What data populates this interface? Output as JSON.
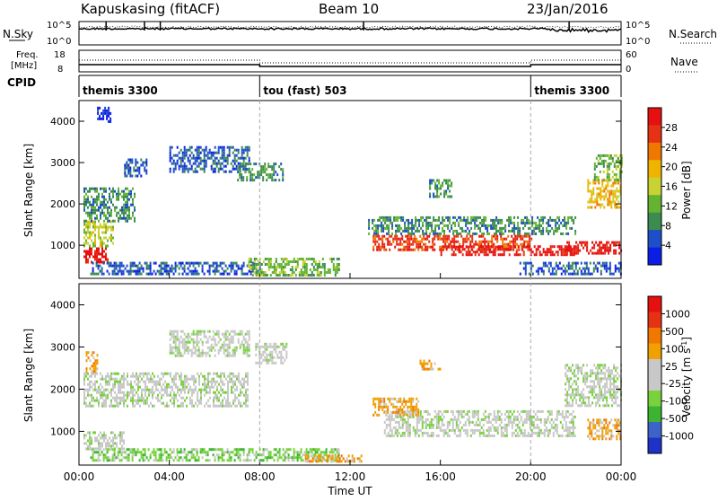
{
  "header": {
    "station": "Kapuskasing (fitACF)",
    "beam": "Beam 10",
    "date": "23/Jan/2016"
  },
  "side_labels": {
    "nsky": "N.Sky",
    "nsearch": "N.Search",
    "freq_line1": "Freq.",
    "freq_line2": "[MHz]",
    "nave": "Nave",
    "cpid": "CPID",
    "noise_top": "10^5",
    "noise_bottom": "10^0",
    "freq_top": "18",
    "freq_bottom": "8",
    "nave_top": "60",
    "nave_bottom": "0"
  },
  "cpid_segments": [
    {
      "label": "themis 3300",
      "start_hour": 0,
      "end_hour": 8
    },
    {
      "label": "tou (fast) 503",
      "start_hour": 8,
      "end_hour": 20
    },
    {
      "label": "themis 3300",
      "start_hour": 20,
      "end_hour": 24
    }
  ],
  "colors": {
    "background": "#ffffff",
    "axis": "#000000",
    "mode_line": "#aaaaaa",
    "scatter_gray": "#c8c8c8"
  },
  "chart_data": [
    {
      "type": "heatmap",
      "name": "Power",
      "xlabel": "",
      "ylabel": "Slant Range [km]",
      "xlim": [
        0,
        24
      ],
      "ylim": [
        200,
        4500
      ],
      "yticks": [
        1000,
        2000,
        3000,
        4000
      ],
      "colorbar": {
        "label": "Power [dB]",
        "ticks": [
          "28",
          "24",
          "20",
          "16",
          "12",
          "8",
          "4"
        ],
        "colors": [
          "#0a1ee6",
          "#1e4fc8",
          "#3c8c50",
          "#64b432",
          "#c8d232",
          "#f0b400",
          "#f07800",
          "#e63214",
          "#e61010"
        ]
      },
      "regions": [
        {
          "x": [
            0.2,
            1.3
          ],
          "y": [
            600,
            950
          ],
          "level": 8
        },
        {
          "x": [
            0.2,
            1.5
          ],
          "y": [
            950,
            1600
          ],
          "level": 4
        },
        {
          "x": [
            0.2,
            2.5
          ],
          "y": [
            1600,
            2400
          ],
          "level": 2
        },
        {
          "x": [
            2.0,
            3.0
          ],
          "y": [
            2700,
            3100
          ],
          "level": 1
        },
        {
          "x": [
            4.0,
            7.5
          ],
          "y": [
            2800,
            3400
          ],
          "level": 1
        },
        {
          "x": [
            7.0,
            9.0
          ],
          "y": [
            2600,
            3000
          ],
          "level": 2
        },
        {
          "x": [
            0.5,
            8.0
          ],
          "y": [
            300,
            600
          ],
          "level": 1
        },
        {
          "x": [
            7.5,
            11.5
          ],
          "y": [
            300,
            700
          ],
          "level": 3
        },
        {
          "x": [
            12.8,
            22.0
          ],
          "y": [
            1300,
            1700
          ],
          "level": 2
        },
        {
          "x": [
            13.0,
            20.0
          ],
          "y": [
            900,
            1250
          ],
          "level": 7
        },
        {
          "x": [
            16.0,
            22.0
          ],
          "y": [
            750,
            1000
          ],
          "level": 8
        },
        {
          "x": [
            21.5,
            24.0
          ],
          "y": [
            800,
            1100
          ],
          "level": 8
        },
        {
          "x": [
            22.5,
            24.0
          ],
          "y": [
            1900,
            2600
          ],
          "level": 5
        },
        {
          "x": [
            15.5,
            16.5
          ],
          "y": [
            2200,
            2600
          ],
          "level": 2
        },
        {
          "x": [
            0.8,
            1.4
          ],
          "y": [
            4000,
            4350
          ],
          "level": 0
        },
        {
          "x": [
            19.5,
            24.0
          ],
          "y": [
            300,
            600
          ],
          "level": 1
        },
        {
          "x": [
            22.8,
            24.0
          ],
          "y": [
            2600,
            3200
          ],
          "level": 3
        }
      ]
    },
    {
      "type": "heatmap",
      "name": "Velocity",
      "xlabel": "Time UT",
      "ylabel": "Slant Range [km]",
      "xlim": [
        0,
        24
      ],
      "ylim": [
        200,
        4500
      ],
      "xticks": [
        "00:00",
        "04:00",
        "08:00",
        "12:00",
        "16:00",
        "20:00",
        "00:00"
      ],
      "yticks": [
        1000,
        2000,
        3000,
        4000
      ],
      "colorbar": {
        "label": "Velocity [m s^-1]",
        "ticks": [
          "1000",
          "500",
          "100",
          "25",
          "-25",
          "-100",
          "-500",
          "-1000"
        ],
        "colors": [
          "#1e32c8",
          "#3c64c8",
          "#3cb432",
          "#78d23c",
          "#c8c8c8",
          "#c8c8c8",
          "#f0a000",
          "#f07800",
          "#e63214",
          "#e61010"
        ]
      },
      "regions": [
        {
          "x": [
            0.2,
            7.5
          ],
          "y": [
            1600,
            2400
          ],
          "level": 4
        },
        {
          "x": [
            4.0,
            7.5
          ],
          "y": [
            2800,
            3400
          ],
          "level": 4
        },
        {
          "x": [
            0.2,
            2.0
          ],
          "y": [
            600,
            1000
          ],
          "level": 4
        },
        {
          "x": [
            0.5,
            11.5
          ],
          "y": [
            300,
            600
          ],
          "level": 3
        },
        {
          "x": [
            13.5,
            22.0
          ],
          "y": [
            900,
            1500
          ],
          "level": 4
        },
        {
          "x": [
            21.5,
            24.0
          ],
          "y": [
            1600,
            2600
          ],
          "level": 4
        },
        {
          "x": [
            13.0,
            15.0
          ],
          "y": [
            1400,
            1800
          ],
          "level": 6
        },
        {
          "x": [
            15.0,
            16.0
          ],
          "y": [
            2500,
            2700
          ],
          "level": 6
        },
        {
          "x": [
            22.5,
            24.0
          ],
          "y": [
            800,
            1300
          ],
          "level": 6
        },
        {
          "x": [
            0.3,
            0.8
          ],
          "y": [
            2400,
            2900
          ],
          "level": 6
        },
        {
          "x": [
            10.0,
            12.5
          ],
          "y": [
            300,
            450
          ],
          "level": 6
        },
        {
          "x": [
            7.8,
            9.2
          ],
          "y": [
            2600,
            3100
          ],
          "level": 4
        }
      ]
    }
  ]
}
